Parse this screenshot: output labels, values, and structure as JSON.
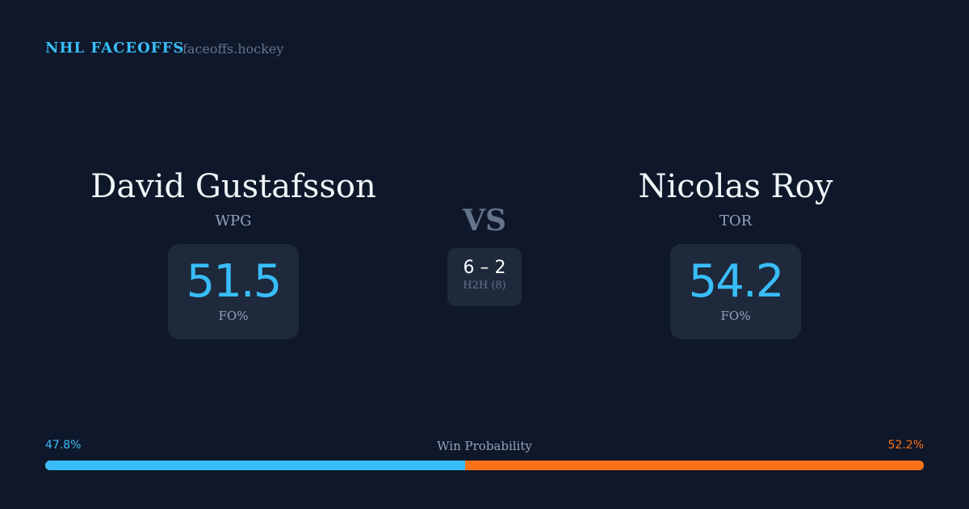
{
  "header": {
    "brand": "NHL FACEOFFS",
    "site": "faceoffs.hockey"
  },
  "left": {
    "name": "David Gustafsson",
    "team": "WPG",
    "fo_pct": "51.5",
    "fo_label": "FO%"
  },
  "right": {
    "name": "Nicolas Roy",
    "team": "TOR",
    "fo_pct": "54.2",
    "fo_label": "FO%"
  },
  "center": {
    "vs": "VS",
    "score": "6 – 2",
    "h2h": "H2H (8)"
  },
  "win_probability": {
    "label": "Win Probability",
    "left_text": "47.8%",
    "right_text": "52.2%",
    "left_value": 47.8,
    "right_value": 52.2
  },
  "colors": {
    "accent_blue": "#38bdf8",
    "accent_orange": "#f97316",
    "background": "#0f172a",
    "card": "#1e293b"
  }
}
